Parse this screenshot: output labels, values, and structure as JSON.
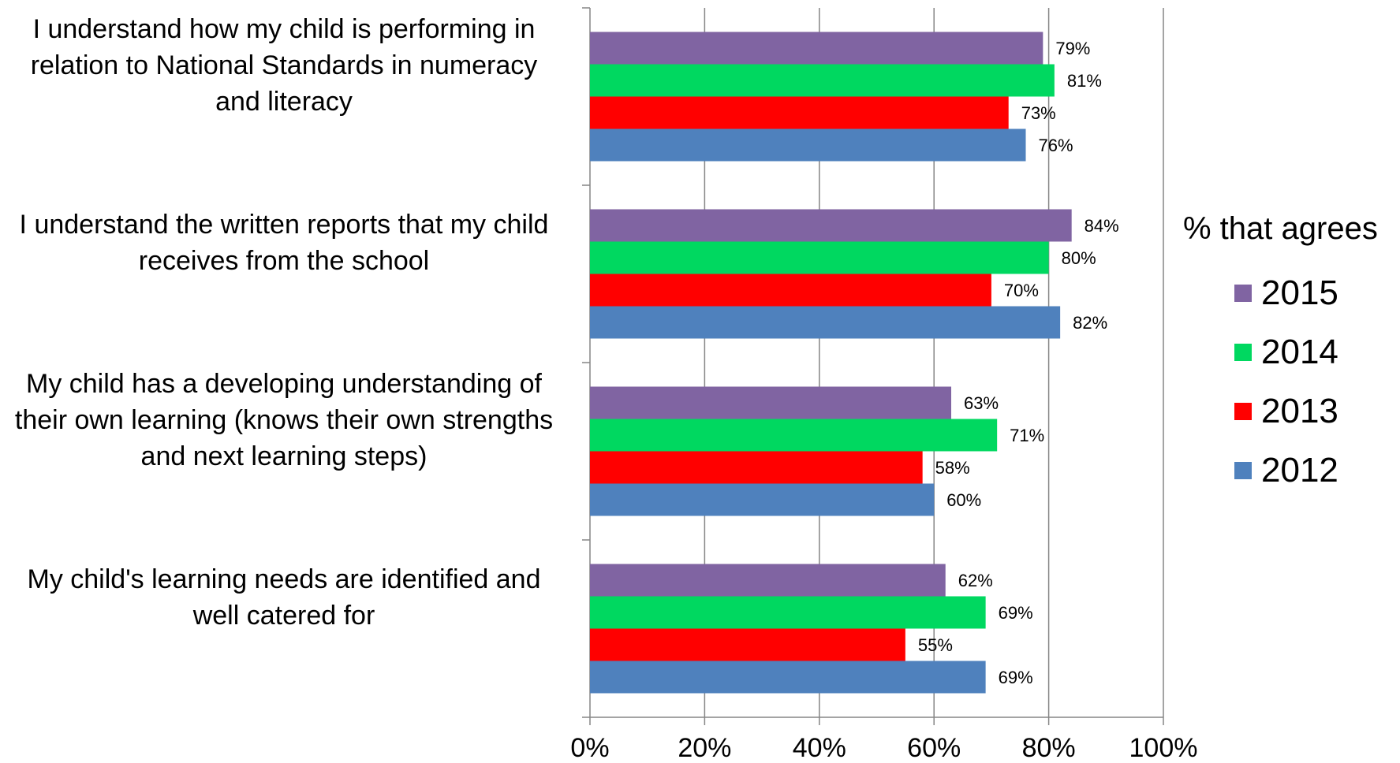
{
  "chart_data": {
    "type": "bar",
    "orientation": "horizontal",
    "categories": [
      "I understand how my child is performing in relation to National Standards in numeracy and literacy",
      "I understand the written reports that my child receives from the school",
      "My child has a developing understanding of their own learning (knows their own strengths and next learning steps)",
      "My child's learning needs are identified and well catered for"
    ],
    "category_lines": [
      [
        "I understand how my child is performing in",
        "relation to National Standards in numeracy",
        "and literacy"
      ],
      [
        "I understand the written reports that my child",
        "receives from the school"
      ],
      [
        "My child has a developing understanding of",
        "their own learning (knows their own strengths",
        "and next learning steps)"
      ],
      [
        "My child's learning needs are identified and",
        "well catered for"
      ]
    ],
    "series": [
      {
        "name": "2015",
        "color": "#8064A2",
        "values": [
          79,
          84,
          63,
          62
        ],
        "labels": [
          "79%",
          "84%",
          "63%",
          "62%"
        ]
      },
      {
        "name": "2014",
        "color": "#00D860",
        "values": [
          81,
          80,
          71,
          69
        ],
        "labels": [
          "81%",
          "80%",
          "71%",
          "69%"
        ]
      },
      {
        "name": "2013",
        "color": "#FF0000",
        "values": [
          73,
          70,
          58,
          55
        ],
        "labels": [
          "73%",
          "70%",
          "58%",
          "55%"
        ]
      },
      {
        "name": "2012",
        "color": "#4F81BD",
        "values": [
          76,
          82,
          60,
          69
        ],
        "labels": [
          "76%",
          "82%",
          "60%",
          "69%"
        ]
      }
    ],
    "xlim": [
      0,
      100
    ],
    "x_ticks": [
      "0%",
      "20%",
      "40%",
      "60%",
      "80%",
      "100%"
    ],
    "legend_title": "% that agrees",
    "legend_position": "right",
    "grid": true
  }
}
